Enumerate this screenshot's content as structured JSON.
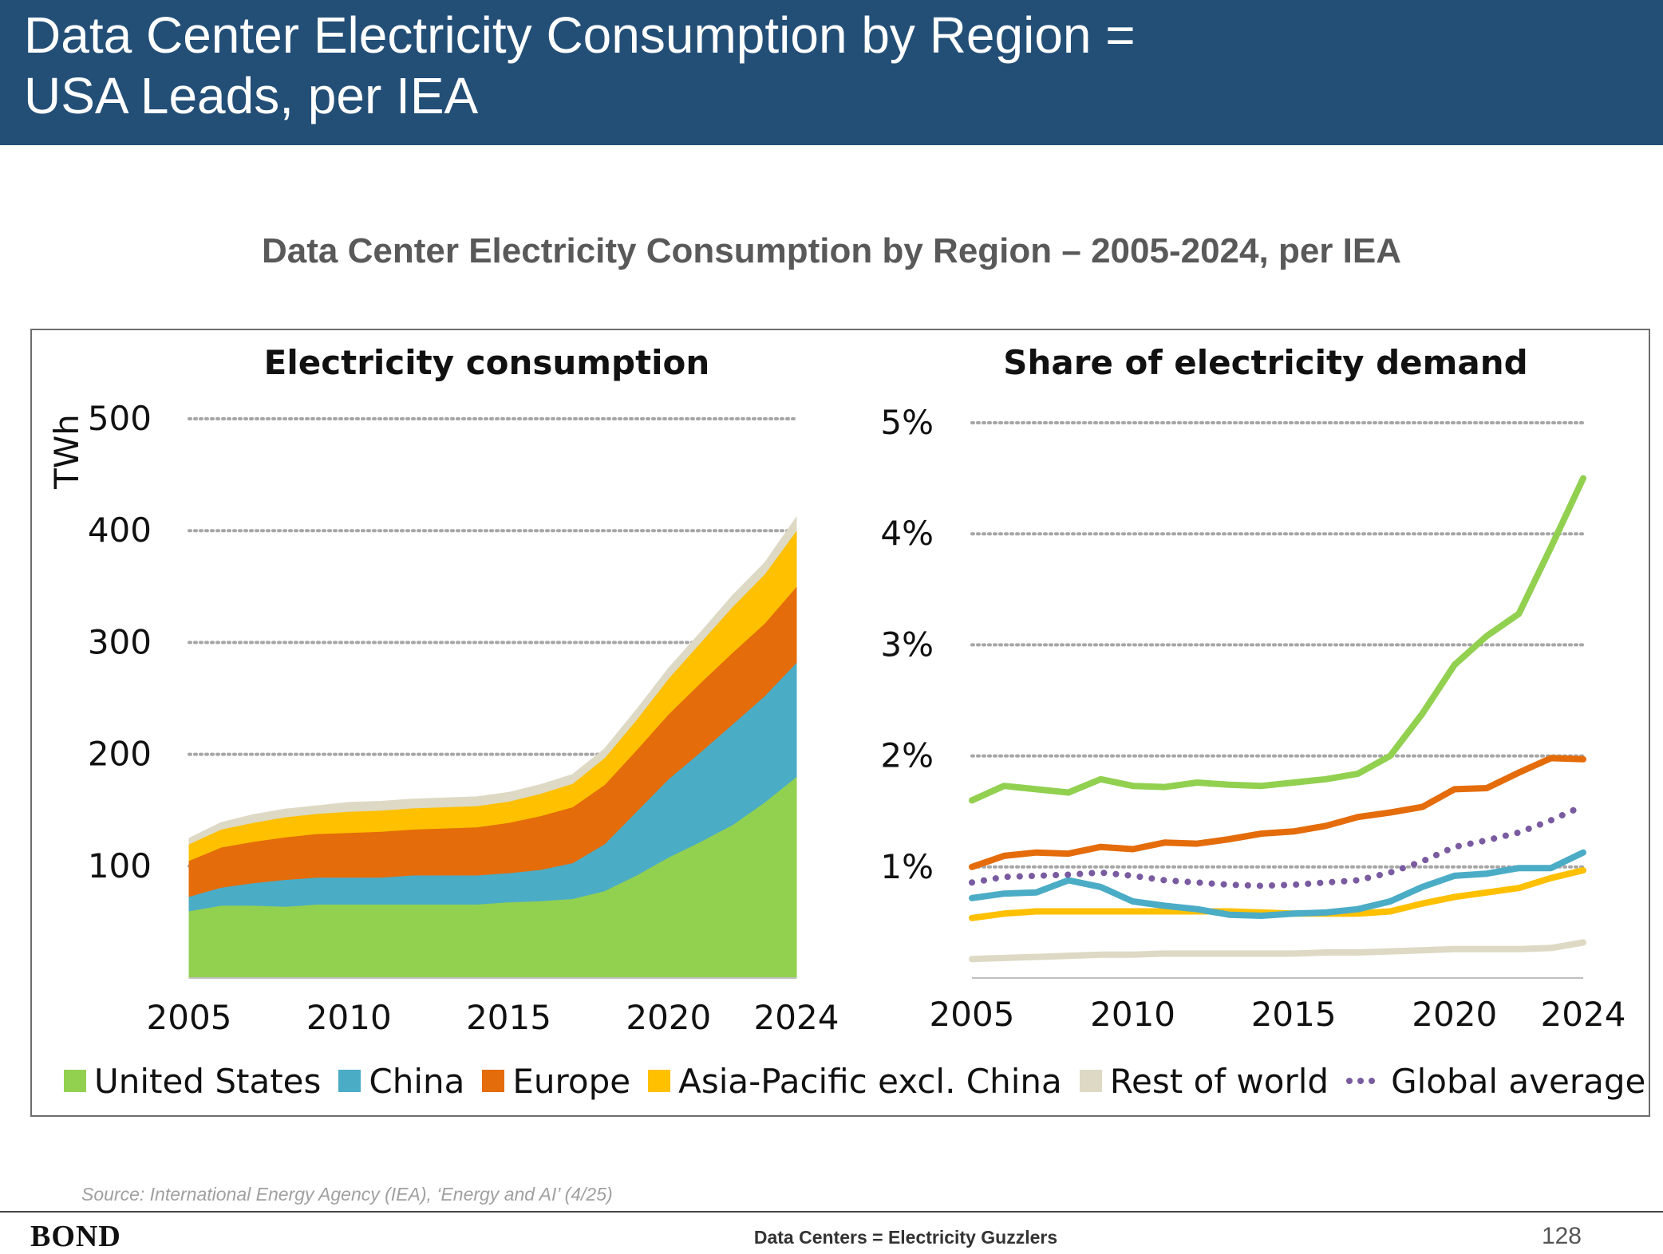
{
  "header": {
    "title_line1": "Data Center Electricity Consumption by Region =",
    "title_line2": "USA Leads, per IEA"
  },
  "chart_heading": "Data Center Electricity Consumption by Region – 2005-2024, per IEA",
  "chart_data": [
    {
      "type": "area",
      "stacked": true,
      "title": "Electricity consumption",
      "ylabel": "TWh",
      "ylim": [
        0,
        500
      ],
      "yticks": [
        "100",
        "200",
        "300",
        "400",
        "500"
      ],
      "xticks": [
        "2005",
        "2010",
        "2015",
        "2020",
        "2024"
      ],
      "grid": "dotted horizontal",
      "x": [
        2005,
        2006,
        2007,
        2008,
        2009,
        2010,
        2011,
        2012,
        2013,
        2014,
        2015,
        2016,
        2017,
        2018,
        2019,
        2020,
        2021,
        2022,
        2023,
        2024
      ],
      "series": [
        {
          "name": "United States",
          "color": "#92d050",
          "values": [
            60,
            65,
            65,
            64,
            66,
            66,
            66,
            66,
            66,
            66,
            68,
            69,
            71,
            78,
            92,
            108,
            122,
            137,
            157,
            180
          ]
        },
        {
          "name": "China",
          "color": "#4bacc6",
          "values": [
            13,
            16,
            20,
            24,
            24,
            24,
            24,
            26,
            26,
            26,
            26,
            28,
            32,
            42,
            57,
            70,
            80,
            90,
            95,
            102
          ]
        },
        {
          "name": "Europe",
          "color": "#e46c0a",
          "values": [
            32,
            36,
            37,
            38,
            39,
            40,
            41,
            41,
            42,
            43,
            45,
            48,
            50,
            53,
            55,
            58,
            62,
            64,
            65,
            68
          ]
        },
        {
          "name": "Asia-Pacific excl. China",
          "color": "#ffc000",
          "values": [
            15,
            16,
            17,
            18,
            18,
            19,
            19,
            19,
            19,
            19,
            19,
            20,
            21,
            24,
            27,
            32,
            36,
            41,
            44,
            50
          ]
        },
        {
          "name": "Rest of world",
          "color": "#ddd9c4",
          "values": [
            5,
            6,
            7,
            7,
            7,
            8,
            8,
            8,
            8,
            8,
            8,
            8,
            8,
            8,
            9,
            9,
            9,
            10,
            10,
            12
          ]
        }
      ]
    },
    {
      "type": "line",
      "title": "Share of electricity demand",
      "ylim": [
        0,
        5
      ],
      "yticks": [
        "1%",
        "2%",
        "3%",
        "4%",
        "5%"
      ],
      "xticks": [
        "2005",
        "2010",
        "2015",
        "2020",
        "2024"
      ],
      "grid": "dotted horizontal",
      "x": [
        2005,
        2006,
        2007,
        2008,
        2009,
        2010,
        2011,
        2012,
        2013,
        2014,
        2015,
        2016,
        2017,
        2018,
        2019,
        2020,
        2021,
        2022,
        2023,
        2024
      ],
      "series": [
        {
          "name": "United States",
          "color": "#92d050",
          "style": "solid",
          "values": [
            1.6,
            1.73,
            1.7,
            1.67,
            1.79,
            1.73,
            1.72,
            1.76,
            1.74,
            1.73,
            1.76,
            1.79,
            1.84,
            2.0,
            2.38,
            2.82,
            3.08,
            3.28,
            3.88,
            4.5
          ]
        },
        {
          "name": "China",
          "color": "#4bacc6",
          "style": "solid",
          "values": [
            0.72,
            0.76,
            0.77,
            0.88,
            0.82,
            0.69,
            0.65,
            0.62,
            0.57,
            0.56,
            0.58,
            0.59,
            0.62,
            0.69,
            0.82,
            0.92,
            0.94,
            0.99,
            0.99,
            1.13
          ]
        },
        {
          "name": "Europe",
          "color": "#e46c0a",
          "style": "solid",
          "values": [
            1.0,
            1.1,
            1.13,
            1.12,
            1.18,
            1.16,
            1.22,
            1.21,
            1.25,
            1.3,
            1.32,
            1.37,
            1.45,
            1.49,
            1.54,
            1.7,
            1.71,
            1.85,
            1.98,
            1.97
          ]
        },
        {
          "name": "Asia-Pacific excl. China",
          "color": "#ffc000",
          "style": "solid",
          "values": [
            0.54,
            0.58,
            0.6,
            0.6,
            0.6,
            0.6,
            0.6,
            0.6,
            0.6,
            0.59,
            0.58,
            0.58,
            0.58,
            0.6,
            0.67,
            0.73,
            0.77,
            0.81,
            0.9,
            0.97
          ]
        },
        {
          "name": "Rest of world",
          "color": "#ddd9c4",
          "style": "solid",
          "values": [
            0.17,
            0.18,
            0.19,
            0.2,
            0.21,
            0.21,
            0.22,
            0.22,
            0.22,
            0.22,
            0.22,
            0.23,
            0.23,
            0.24,
            0.25,
            0.26,
            0.26,
            0.26,
            0.27,
            0.32
          ]
        },
        {
          "name": "Global average",
          "color": "#7a5ba0",
          "style": "dotted",
          "values": [
            0.86,
            0.91,
            0.92,
            0.93,
            0.95,
            0.92,
            0.88,
            0.86,
            0.84,
            0.83,
            0.84,
            0.86,
            0.88,
            0.95,
            1.05,
            1.18,
            1.24,
            1.31,
            1.42,
            1.55
          ]
        }
      ]
    }
  ],
  "legend": [
    {
      "label": "United States",
      "color": "#92d050",
      "marker": "square"
    },
    {
      "label": "China",
      "color": "#4bacc6",
      "marker": "square"
    },
    {
      "label": "Europe",
      "color": "#e46c0a",
      "marker": "square"
    },
    {
      "label": "Asia-Pacific excl. China",
      "color": "#ffc000",
      "marker": "square"
    },
    {
      "label": "Rest of world",
      "color": "#ddd9c4",
      "marker": "square"
    },
    {
      "label": "Global average",
      "color": "#7a5ba0",
      "marker": "dots"
    }
  ],
  "footer": {
    "source": "Source: International Energy Agency (IEA), ‘Energy and AI’ (4/25)",
    "logo": "BOND",
    "title": "Data Centers = Electricity Guzzlers",
    "page_number": "128"
  },
  "colors": {
    "banner": "#234f77",
    "grid": "#a6a6a6"
  }
}
